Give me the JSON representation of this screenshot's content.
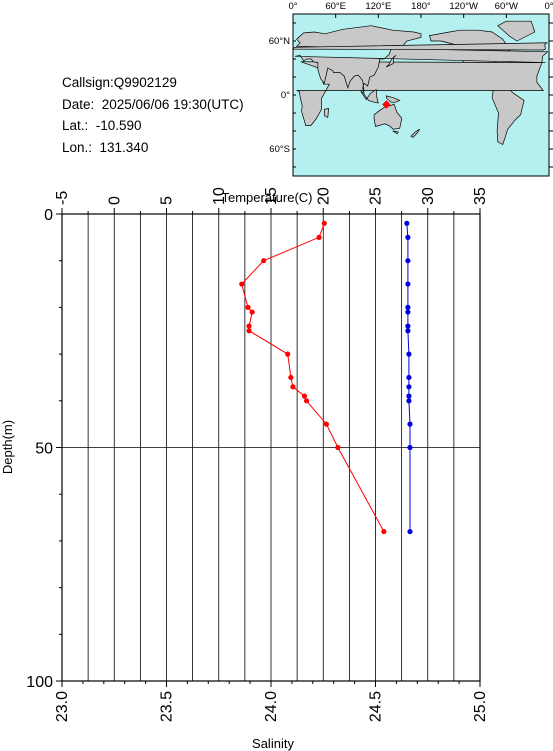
{
  "info": {
    "callsign": "Callsign:Q9902129",
    "date": "Date:  2025/06/06 19:30(UTC)",
    "lat": "Lat.:  -10.590",
    "lon": "Lon.:  131.340"
  },
  "map": {
    "top_labels": [
      "0°",
      "60°E",
      "120°E",
      "180°",
      "120°W",
      "60°W",
      "0°"
    ],
    "lat_labels": [
      "60°N",
      "0°",
      "60°S"
    ],
    "ocean_color": "#b4f0f0",
    "land_color": "#c8c8c8",
    "marker_color": "#ff0000",
    "marker": {
      "lat": -10.59,
      "lon": 131.34
    }
  },
  "chart_data": {
    "type": "line",
    "top_axis_label": "Temperature(C)",
    "bottom_axis_label": "Salinity",
    "ylabel": "Depth(m)",
    "temperature_range": [
      -5,
      35
    ],
    "temperature_ticks": [
      -5,
      0,
      5,
      10,
      15,
      20,
      25,
      30,
      35
    ],
    "salinity_range": [
      23.0,
      25.0
    ],
    "salinity_ticks": [
      "23.0",
      "23.5",
      "24.0",
      "24.5",
      "25.0"
    ],
    "depth_range": [
      0,
      100
    ],
    "depth_ticks": [
      0,
      50,
      100
    ],
    "series": [
      {
        "quantity": "temperature",
        "color": "#ff0000",
        "points": [
          {
            "depth": 2,
            "value": 20.1
          },
          {
            "depth": 5,
            "value": 19.6
          },
          {
            "depth": 10,
            "value": 14.3
          },
          {
            "depth": 15,
            "value": 12.2
          },
          {
            "depth": 20,
            "value": 12.8
          },
          {
            "depth": 21,
            "value": 13.2
          },
          {
            "depth": 24,
            "value": 12.9
          },
          {
            "depth": 25,
            "value": 12.9
          },
          {
            "depth": 30,
            "value": 16.6
          },
          {
            "depth": 35,
            "value": 16.9
          },
          {
            "depth": 37,
            "value": 17.1
          },
          {
            "depth": 39,
            "value": 18.2
          },
          {
            "depth": 40,
            "value": 18.4
          },
          {
            "depth": 45,
            "value": 20.3
          },
          {
            "depth": 50,
            "value": 21.4
          },
          {
            "depth": 68,
            "value": 25.8
          }
        ]
      },
      {
        "quantity": "salinity",
        "color": "#0000dd",
        "points": [
          {
            "depth": 2,
            "value": 24.65
          },
          {
            "depth": 5,
            "value": 24.655
          },
          {
            "depth": 10,
            "value": 24.655
          },
          {
            "depth": 15,
            "value": 24.655
          },
          {
            "depth": 20,
            "value": 24.655
          },
          {
            "depth": 21,
            "value": 24.655
          },
          {
            "depth": 24,
            "value": 24.655
          },
          {
            "depth": 25,
            "value": 24.655
          },
          {
            "depth": 30,
            "value": 24.66
          },
          {
            "depth": 35,
            "value": 24.66
          },
          {
            "depth": 37,
            "value": 24.66
          },
          {
            "depth": 39,
            "value": 24.66
          },
          {
            "depth": 40,
            "value": 24.66
          },
          {
            "depth": 45,
            "value": 24.665
          },
          {
            "depth": 50,
            "value": 24.665
          },
          {
            "depth": 68,
            "value": 24.665
          }
        ]
      }
    ],
    "grid": true
  }
}
